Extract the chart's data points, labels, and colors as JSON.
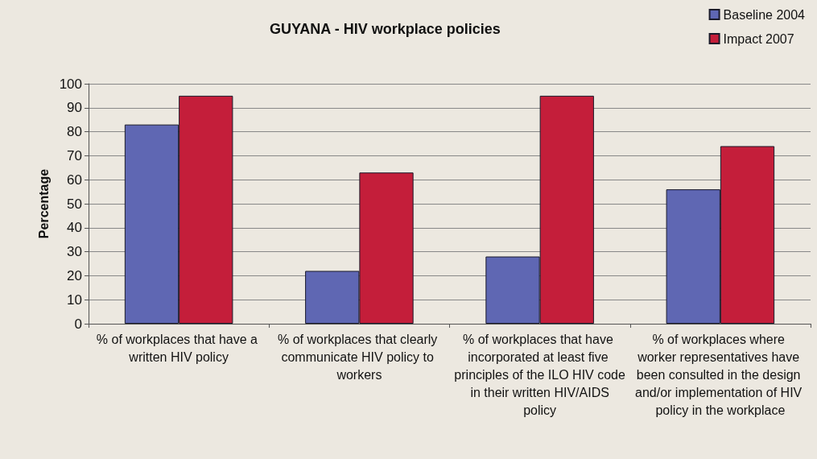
{
  "chart_data": {
    "type": "bar",
    "title": "GUYANA - HIV workplace policies",
    "ylabel": "Percentage",
    "categories": [
      "% of workplaces that have a written HIV policy",
      "% of workplaces that clearly communicate HIV policy to workers",
      "% of workplaces that have incorporated at least five principles of the ILO HIV code in their written HIV/AIDS policy",
      "% of workplaces where worker representatives have been consulted in the design and/or implementation of HIV policy in the workplace"
    ],
    "series": [
      {
        "name": "Baseline 2004",
        "color": "#5f67b3",
        "values": [
          83,
          22,
          28,
          56
        ]
      },
      {
        "name": "Impact 2007",
        "color": "#c41e3a",
        "values": [
          95,
          63,
          95,
          74
        ]
      }
    ],
    "ylim": [
      0,
      100
    ],
    "yticks": [
      0,
      10,
      20,
      30,
      40,
      50,
      60,
      70,
      80,
      90,
      100
    ],
    "grid": "y",
    "legend": "top right"
  }
}
